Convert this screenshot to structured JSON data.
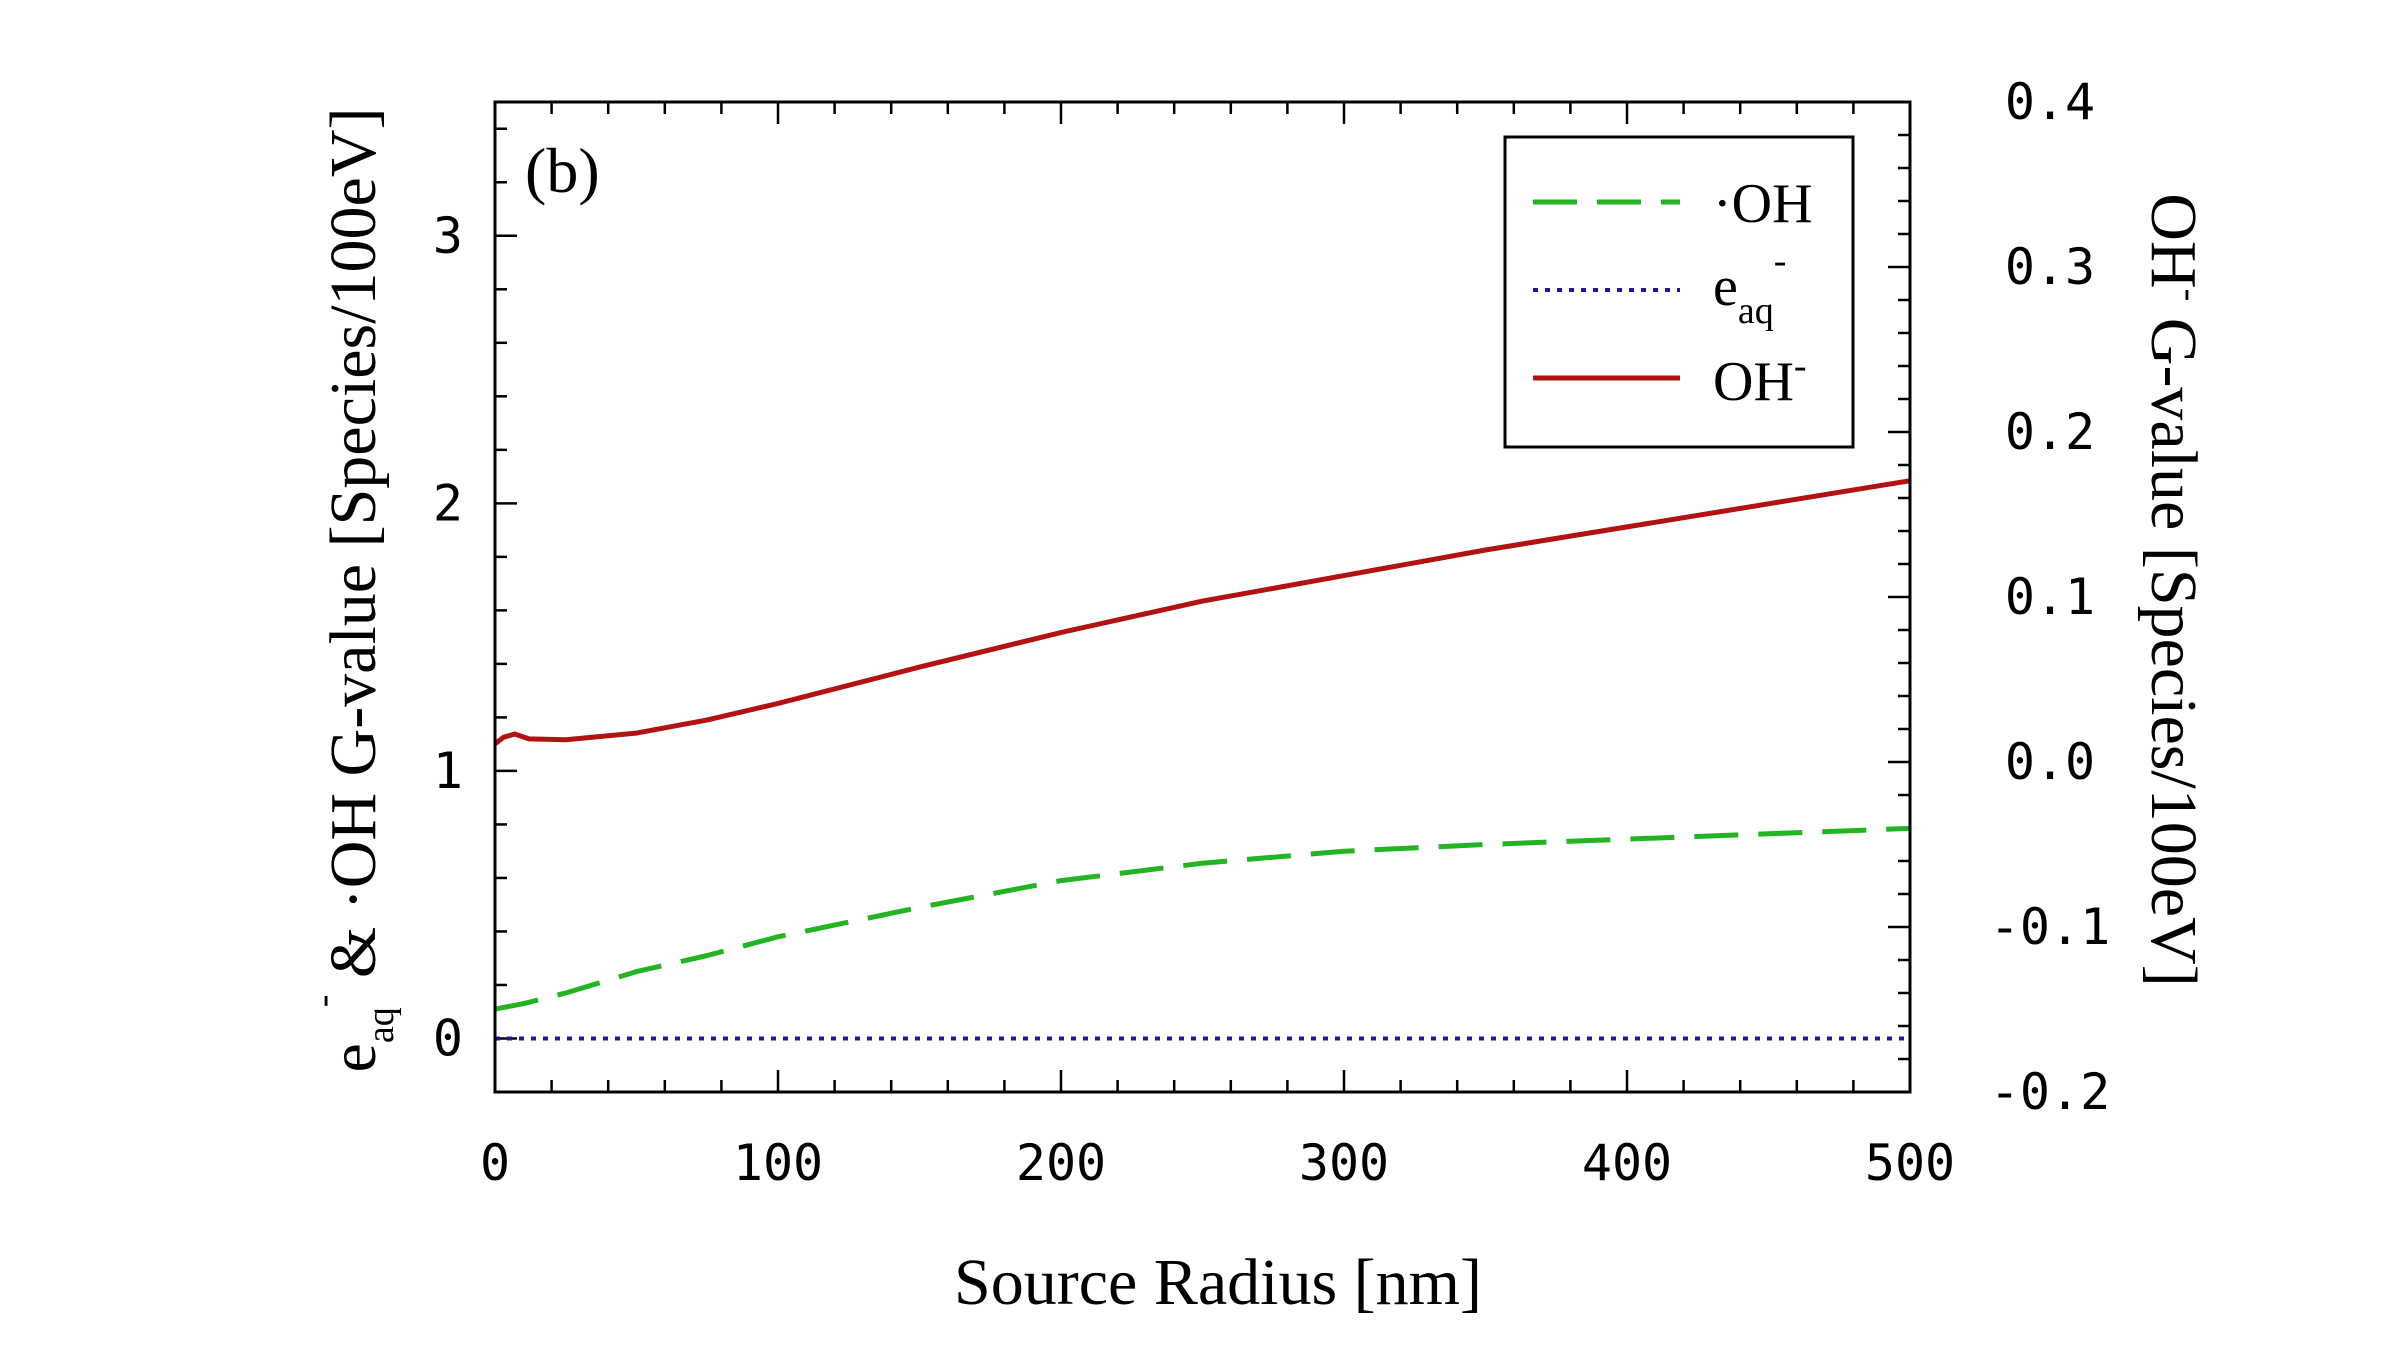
{
  "chart_data": {
    "type": "line",
    "panel_label": "(b)",
    "xlabel": "Source Radius [nm]",
    "ylabel_left": {
      "e_base": "e",
      "e_sub": "aq",
      "e_sup": "-",
      "amp": " & ",
      "oh_dot": "·",
      "oh_text": "OH G-value [Species/100eV]"
    },
    "ylabel_right": {
      "oh_base": "OH",
      "oh_sup": "-",
      "rest": " G-value [Species/100eV]"
    },
    "xlim": [
      0,
      500
    ],
    "ylim_left": [
      -0.2,
      3.5
    ],
    "ylim_right": [
      -0.2,
      0.4
    ],
    "x_ticks": [
      "0",
      "100",
      "200",
      "300",
      "400",
      "500"
    ],
    "y_left_ticks": [
      "0",
      "1",
      "2",
      "3"
    ],
    "y_right_ticks": [
      "-0.2",
      "-0.1",
      "0.0",
      "0.1",
      "0.2",
      "0.3",
      "0.4"
    ],
    "series": [
      {
        "name": "·OH",
        "axis": "left",
        "color": "#22b522",
        "style": "dashed",
        "x": [
          0,
          10,
          25,
          50,
          75,
          100,
          150,
          200,
          250,
          300,
          350,
          400,
          450,
          500
        ],
        "y": [
          0.11,
          0.13,
          0.17,
          0.25,
          0.31,
          0.38,
          0.49,
          0.59,
          0.655,
          0.7,
          0.725,
          0.745,
          0.765,
          0.785
        ]
      },
      {
        "name": "e_aq-",
        "axis": "left",
        "color": "#1a1aa0",
        "style": "dotted",
        "x": [
          0,
          500
        ],
        "y": [
          0.0,
          0.0
        ]
      },
      {
        "name": "OH-",
        "axis": "right",
        "color": "#b31212",
        "style": "solid",
        "x": [
          0,
          3,
          7,
          12,
          25,
          50,
          75,
          100,
          150,
          200,
          250,
          300,
          350,
          400,
          450,
          500
        ],
        "y": [
          0.011,
          0.015,
          0.017,
          0.014,
          0.0135,
          0.0175,
          0.0255,
          0.0355,
          0.0575,
          0.0785,
          0.0975,
          0.113,
          0.1285,
          0.1425,
          0.1565,
          0.1705
        ]
      }
    ],
    "legend": {
      "position": "top-right",
      "entries": [
        {
          "dot": "·",
          "base": "OH",
          "sub": "",
          "sup": ""
        },
        {
          "dot": "",
          "base": "e",
          "sub": "aq",
          "sup": "-"
        },
        {
          "dot": "",
          "base": "OH",
          "sub": "",
          "sup": "-"
        }
      ]
    }
  }
}
